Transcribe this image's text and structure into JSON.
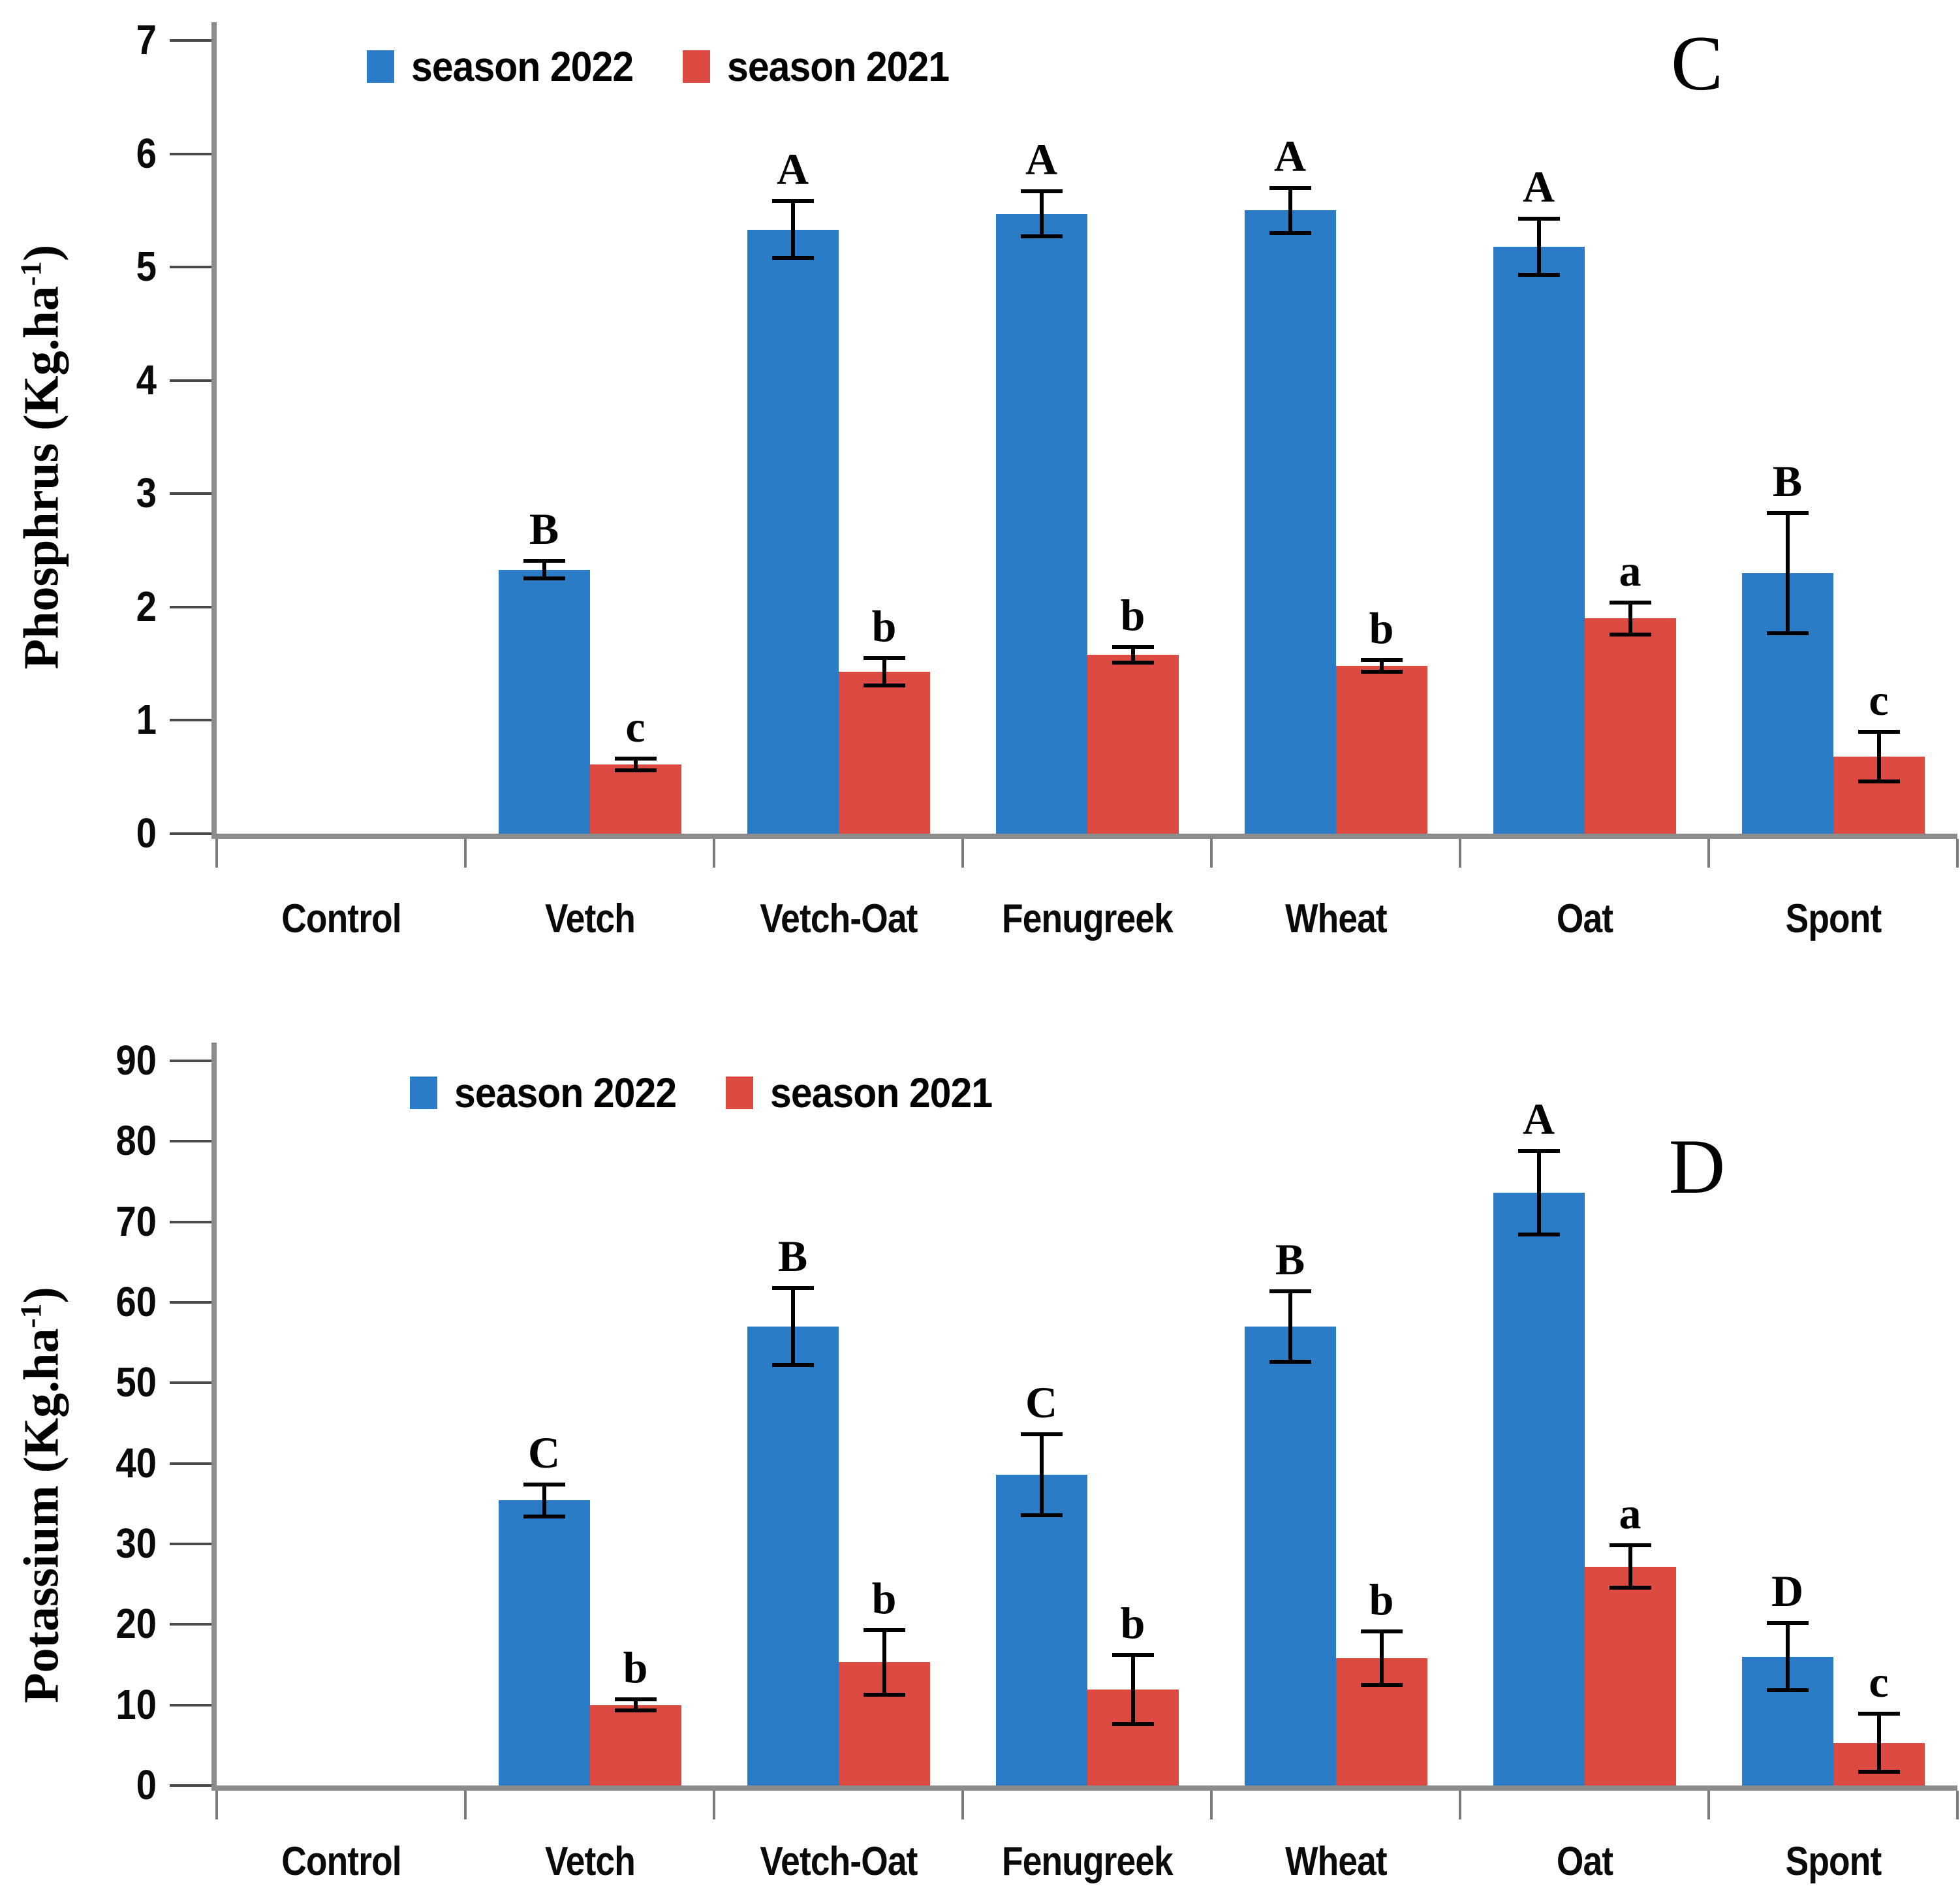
{
  "figure": {
    "description": "Two-panel grouped bar chart figure comparing nutrient uptake across cover crop treatments for two seasons",
    "background": "#ffffff"
  },
  "colors": {
    "season2022": "#2A7CC7",
    "season2021": "#DC4A42",
    "axis": "#8C8C8C",
    "tick": "#4A4A4A",
    "error_bar": "#000000",
    "text": "#000000"
  },
  "chart_data": [
    {
      "type": "bar",
      "panel_label": "C",
      "ylabel_prefix": "Phosphrus (Kg.ha",
      "ylabel_sup": "-1",
      "ylabel_suffix": ")",
      "xlabel": "",
      "grid": false,
      "legend_position": "top-inset",
      "ylim": [
        0,
        7
      ],
      "ytick_step": 1,
      "yticks": [
        0,
        1,
        2,
        3,
        4,
        5,
        6,
        7
      ],
      "categories": [
        "Control",
        "Vetch",
        "Vetch-Oat",
        "Fenugreek",
        "Wheat",
        "Oat",
        "Spont"
      ],
      "series": [
        {
          "name": "season 2022",
          "color_key": "season2022",
          "values": [
            0,
            2.33,
            5.33,
            5.47,
            5.5,
            5.18,
            2.3
          ],
          "errors": [
            0,
            0.08,
            0.25,
            0.2,
            0.2,
            0.25,
            0.53
          ],
          "letters": [
            "",
            "B",
            "A",
            "A",
            "A",
            "A",
            "B"
          ]
        },
        {
          "name": "season 2021",
          "color_key": "season2021",
          "values": [
            0,
            0.61,
            1.43,
            1.58,
            1.48,
            1.9,
            0.68
          ],
          "errors": [
            0,
            0.05,
            0.12,
            0.07,
            0.05,
            0.14,
            0.22
          ],
          "letters": [
            "",
            "c",
            "b",
            "b",
            "b",
            "a",
            "c"
          ]
        }
      ]
    },
    {
      "type": "bar",
      "panel_label": "D",
      "ylabel_prefix": "Potassium (Kg.ha",
      "ylabel_sup": "-1",
      "ylabel_suffix": ")",
      "xlabel": "",
      "grid": false,
      "legend_position": "top-inset",
      "ylim": [
        0,
        90
      ],
      "ytick_step": 10,
      "yticks": [
        0,
        10,
        20,
        30,
        40,
        50,
        60,
        70,
        80,
        90
      ],
      "categories": [
        "Control",
        "Vetch",
        "Vetch-Oat",
        "Fenugreek",
        "Wheat",
        "Oat",
        "Spont"
      ],
      "series": [
        {
          "name": "season 2022",
          "color_key": "season2022",
          "values": [
            0,
            35.4,
            57,
            38.6,
            57,
            73.6,
            16
          ],
          "errors": [
            0,
            2,
            4.8,
            5,
            4.4,
            5.2,
            4.2
          ],
          "letters": [
            "",
            "C",
            "B",
            "C",
            "B",
            "A",
            "D"
          ]
        },
        {
          "name": "season 2021",
          "color_key": "season2021",
          "values": [
            0,
            10,
            15.3,
            11.9,
            15.8,
            27.2,
            5.3
          ],
          "errors": [
            0,
            0.7,
            4,
            4.3,
            3.3,
            2.6,
            3.6
          ],
          "letters": [
            "",
            "b",
            "b",
            "b",
            "b",
            "a",
            "c"
          ]
        }
      ]
    }
  ]
}
